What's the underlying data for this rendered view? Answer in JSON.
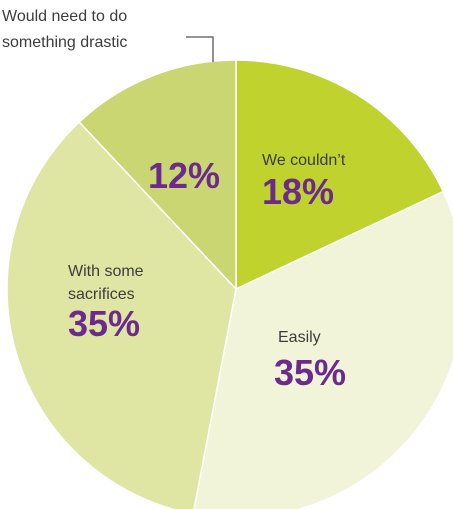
{
  "chart_data": {
    "type": "pie",
    "slices": [
      {
        "label": "We couldn’t",
        "value": 18,
        "display": "18%",
        "color": "#c0d22e"
      },
      {
        "label": "Easily",
        "value": 35,
        "display": "35%",
        "color": "#f2f4da"
      },
      {
        "label": "With some sacrifices",
        "label_lines": [
          "With some",
          "sacrifices"
        ],
        "value": 35,
        "display": "35%",
        "color": "#dfe6a4"
      },
      {
        "label": "Would need to do something drastic",
        "label_lines": [
          "Would need to do",
          "something drastic"
        ],
        "value": 12,
        "display": "12%",
        "color": "#cad671"
      }
    ],
    "start_angle": "12 o'clock",
    "direction": "clockwise",
    "legend": "none",
    "colors": {
      "label_text": "#3c3c3c",
      "percent_text": "#6b2a8c",
      "background": "#ffffff"
    }
  }
}
